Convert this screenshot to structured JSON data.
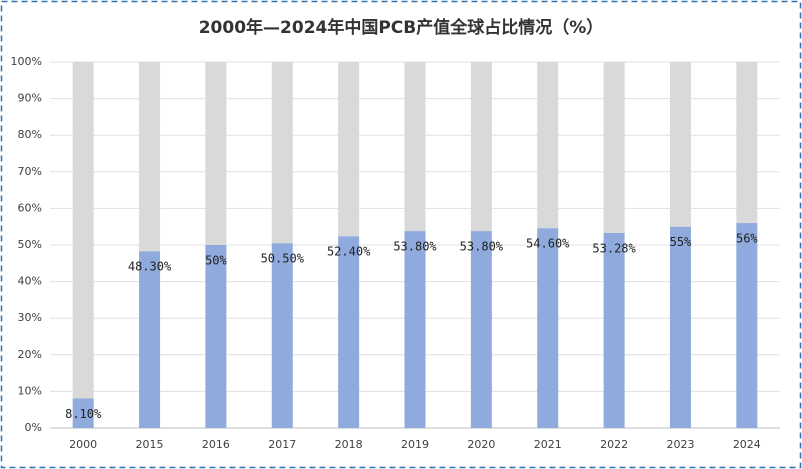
{
  "chart_data": {
    "type": "stacked_bar",
    "title": "2000年—2024年中国PCB产值全球占比情况（%）",
    "categories": [
      "2000",
      "2015",
      "2016",
      "2017",
      "2018",
      "2019",
      "2020",
      "2021",
      "2022",
      "2023",
      "2024"
    ],
    "series": [
      {
        "color": "#8faadc",
        "values": [
          8.1,
          48.3,
          50,
          50.5,
          52.4,
          53.8,
          53.8,
          54.6,
          53.28,
          55,
          56
        ],
        "value_labels": [
          "8.10%",
          "48.30%",
          "50%",
          "50.50%",
          "52.40%",
          "53.80%",
          "53.80%",
          "54.60%",
          "53.28%",
          "55%",
          "56%"
        ]
      },
      {
        "color": "#d9d9d9",
        "values": [
          91.9,
          51.7,
          50,
          49.5,
          47.6,
          46.2,
          46.2,
          45.4,
          46.72,
          45,
          44
        ]
      }
    ],
    "ylim": [
      0,
      100
    ],
    "yticks": [
      {
        "value": 0,
        "label": "0%"
      },
      {
        "value": 10,
        "label": "10%"
      },
      {
        "value": 20,
        "label": "20%"
      },
      {
        "value": 30,
        "label": "30%"
      },
      {
        "value": 40,
        "label": "40%"
      },
      {
        "value": 50,
        "label": "50%"
      },
      {
        "value": 60,
        "label": "60%"
      },
      {
        "value": 70,
        "label": "70%"
      },
      {
        "value": 80,
        "label": "80%"
      },
      {
        "value": 90,
        "label": "90%"
      },
      {
        "value": 100,
        "label": "100%"
      }
    ],
    "grid": true
  }
}
